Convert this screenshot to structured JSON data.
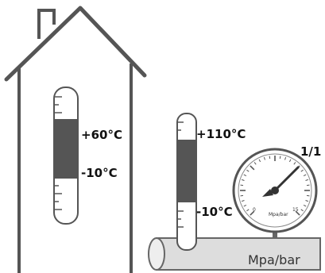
{
  "indoor_thermometer": {
    "max_label": "+60°C",
    "min_label": "-10°C"
  },
  "pipe_thermometer": {
    "max_label": "+110°C",
    "min_label": "-10°C"
  },
  "pressure_gauge": {
    "thread_label": "1/1",
    "dial_unit": "Mpa/bar",
    "dial_min": "0",
    "dial_max": "15"
  },
  "pipe": {
    "label": "Mpa/bar"
  },
  "colors": {
    "outline": "#555555",
    "fill_band": "#555555",
    "pipe_fill": "#dddddd",
    "needle": "#333333"
  }
}
